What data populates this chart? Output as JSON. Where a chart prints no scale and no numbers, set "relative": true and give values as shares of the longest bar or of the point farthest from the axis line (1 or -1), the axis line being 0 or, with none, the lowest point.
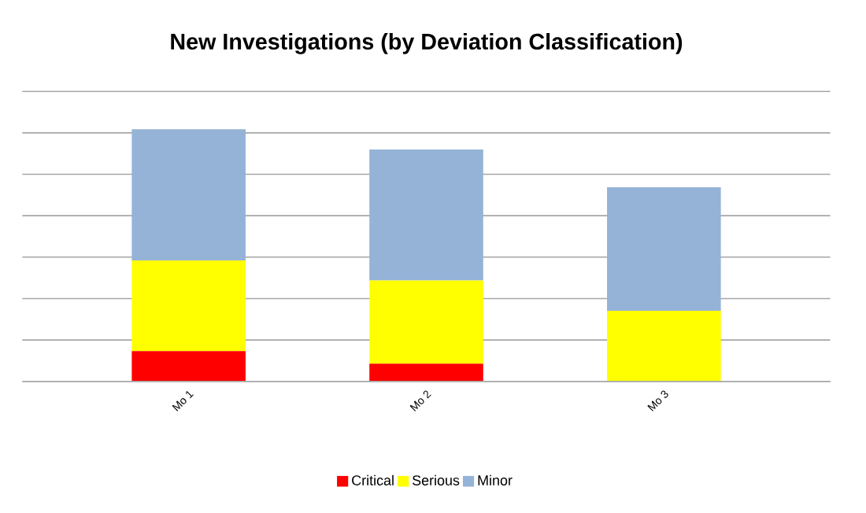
{
  "chart_data": {
    "type": "bar",
    "title": "New Investigations (by Deviation Classification)",
    "categories": [
      "Mo 1",
      "Mo 2",
      "Mo 3"
    ],
    "stacked": true,
    "relative": true,
    "grid": "y",
    "legend": "bottom",
    "series": [
      {
        "name": "Critical",
        "color": "#ff0000",
        "values": [
          0.12,
          0.07,
          0
        ]
      },
      {
        "name": "Serious",
        "color": "#ffff00",
        "values": [
          0.36,
          0.33,
          0.28
        ]
      },
      {
        "name": "Minor",
        "color": "#95b3d7",
        "values": [
          0.52,
          0.52,
          0.49
        ]
      }
    ]
  }
}
